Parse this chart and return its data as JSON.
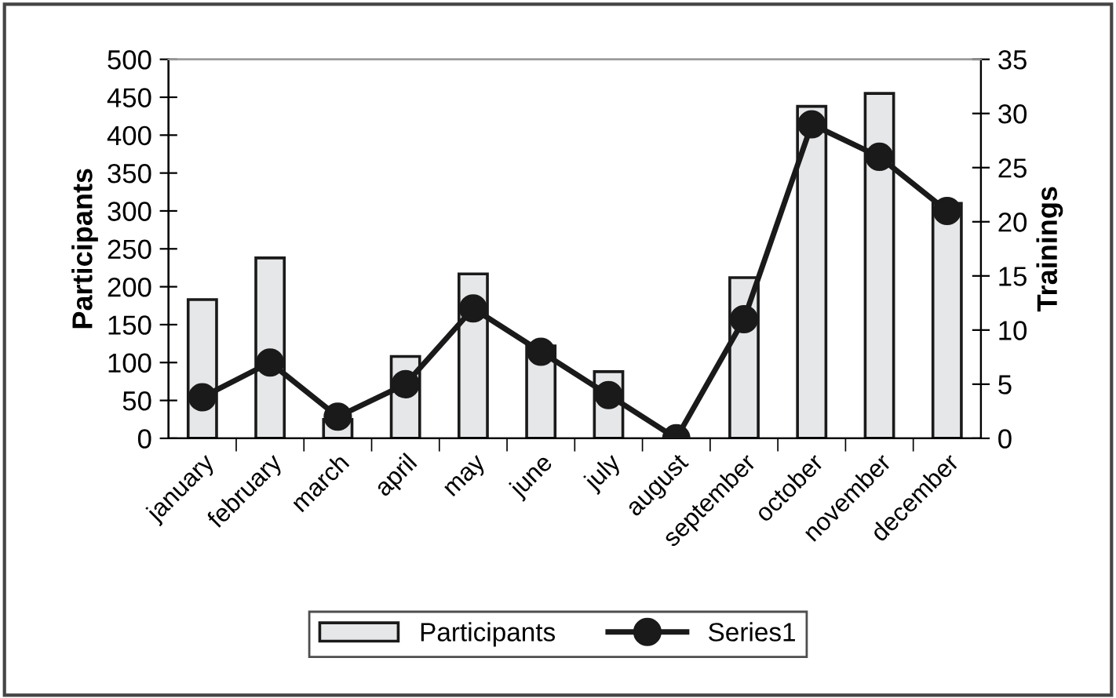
{
  "chart_data": {
    "type": "bar",
    "categories": [
      "january",
      "february",
      "march",
      "april",
      "may",
      "june",
      "july",
      "august",
      "september",
      "october",
      "november",
      "december"
    ],
    "ylabel": "Participants",
    "y2label": "Trainings",
    "ylim": [
      0,
      500
    ],
    "yticks": [
      0,
      50,
      100,
      150,
      200,
      250,
      300,
      350,
      400,
      450,
      500
    ],
    "y2lim": [
      0,
      35
    ],
    "y2ticks": [
      0,
      5,
      10,
      15,
      20,
      25,
      30,
      35
    ],
    "series": [
      {
        "name": "Participants",
        "color": "#e6e7e8",
        "values": [
          183,
          238,
          25,
          108,
          217,
          122,
          88,
          null,
          212,
          438,
          455,
          310
        ]
      },
      {
        "name": "Series1",
        "type": "line",
        "axis": "y2",
        "color": "#1a1a1a",
        "marker": "circle",
        "line_style": "solid",
        "values": [
          3.8,
          7,
          2,
          5,
          12,
          8,
          4,
          0,
          11,
          29,
          26,
          21
        ]
      }
    ],
    "grid": false,
    "legend": "bottom"
  }
}
